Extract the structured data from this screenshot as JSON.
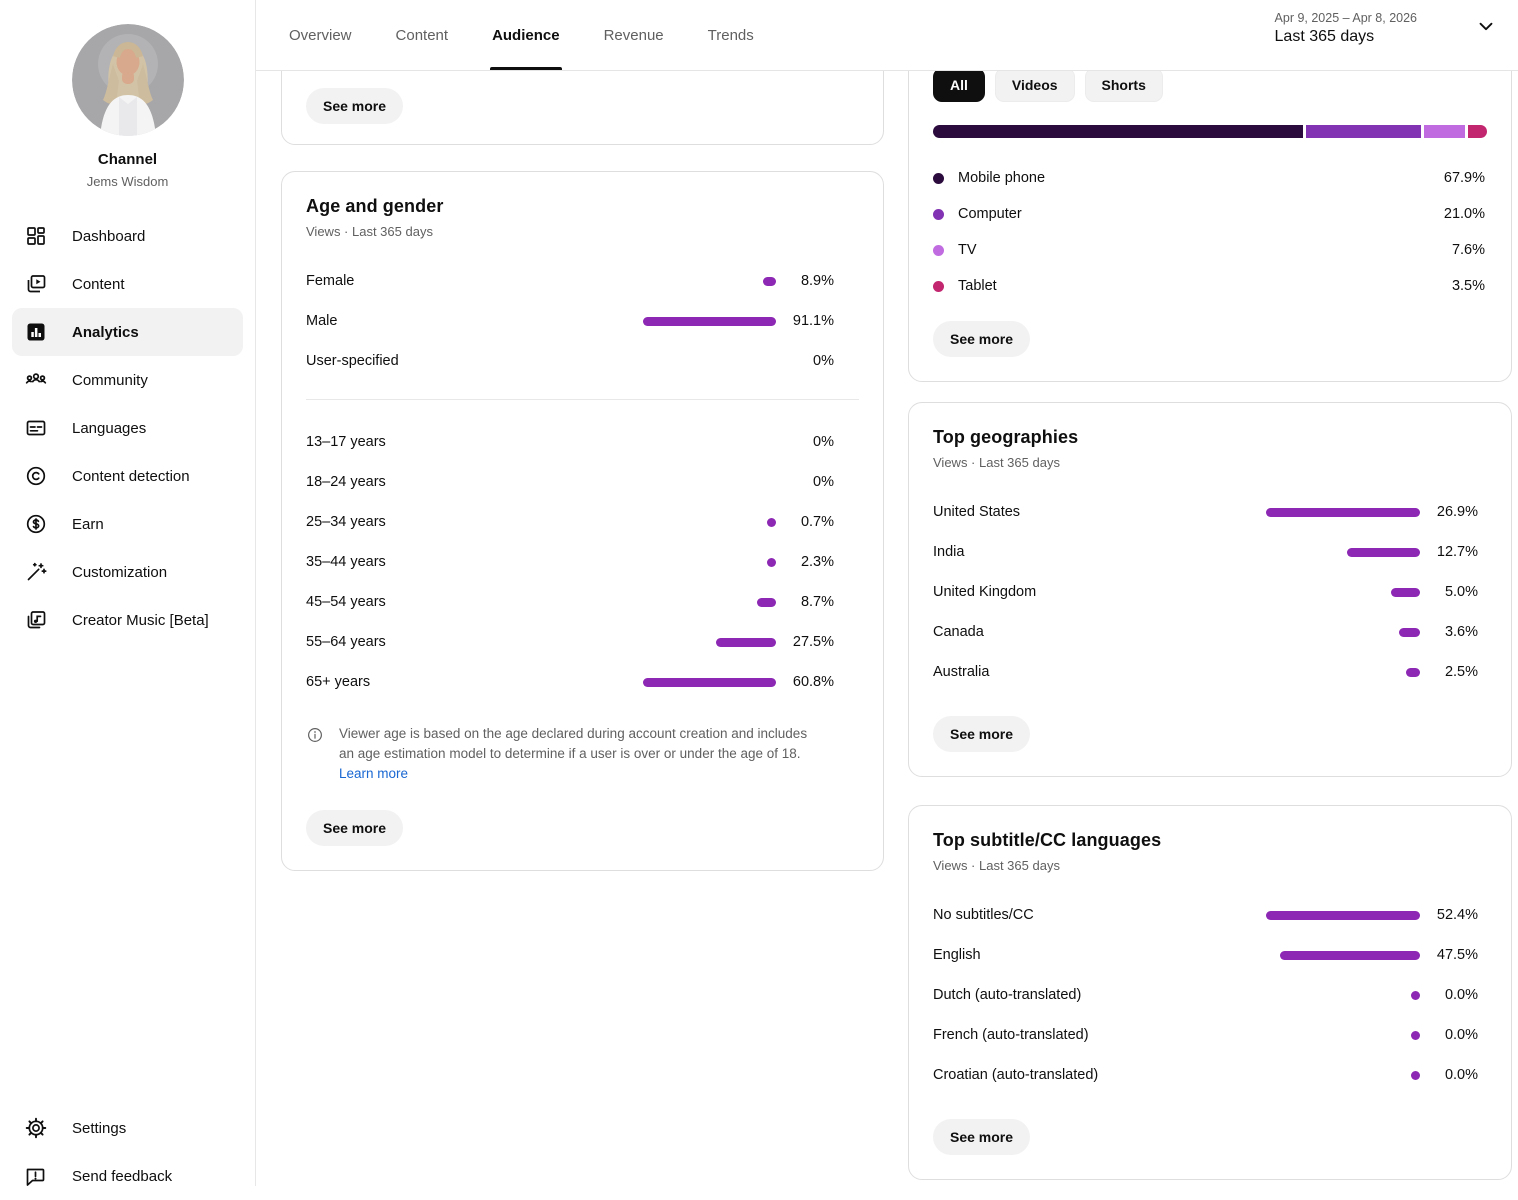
{
  "sidebar": {
    "channel_label": "Channel",
    "channel_name": "Jems Wisdom",
    "items": [
      {
        "label": "Dashboard",
        "icon": "dashboard-icon",
        "active": false
      },
      {
        "label": "Content",
        "icon": "content-icon",
        "active": false
      },
      {
        "label": "Analytics",
        "icon": "analytics-icon",
        "active": true
      },
      {
        "label": "Community",
        "icon": "community-icon",
        "active": false
      },
      {
        "label": "Languages",
        "icon": "languages-icon",
        "active": false
      },
      {
        "label": "Content detection",
        "icon": "copyright-icon",
        "active": false
      },
      {
        "label": "Earn",
        "icon": "dollar-icon",
        "active": false
      },
      {
        "label": "Customization",
        "icon": "wand-icon",
        "active": false
      },
      {
        "label": "Creator Music [Beta]",
        "icon": "music-icon",
        "active": false
      }
    ],
    "footer_items": [
      {
        "label": "Settings",
        "icon": "settings-icon",
        "active": false
      },
      {
        "label": "Send feedback",
        "icon": "feedback-icon",
        "active": false
      }
    ]
  },
  "header": {
    "tabs": [
      {
        "label": "Overview",
        "active": false
      },
      {
        "label": "Content",
        "active": false
      },
      {
        "label": "Audience",
        "active": true
      },
      {
        "label": "Revenue",
        "active": false
      },
      {
        "label": "Trends",
        "active": false
      }
    ],
    "date_range": "Apr 9, 2025 – Apr 8, 2026",
    "date_preset": "Last 365 days"
  },
  "colors": {
    "bar_purple": "#8c28b4",
    "mobile_segment": "#2b0b3d",
    "computer_segment": "#8233b3",
    "tv_segment": "#c06ce0",
    "tablet_segment": "#c2266f",
    "link_blue": "#1967d2"
  },
  "top_card": {
    "see_more": "See more"
  },
  "age_gender": {
    "title": "Age and gender",
    "subtitle": "Views · Last 365 days",
    "gender_rows": [
      {
        "label": "Female",
        "display": "8.9%",
        "value": 8.9
      },
      {
        "label": "Male",
        "display": "91.1%",
        "value": 91.1
      },
      {
        "label": "User-specified",
        "display": "0%",
        "value": 0
      }
    ],
    "age_rows": [
      {
        "label": "13–17 years",
        "display": "0%",
        "value": 0
      },
      {
        "label": "18–24 years",
        "display": "0%",
        "value": 0
      },
      {
        "label": "25–34 years",
        "display": "0.7%",
        "value": 0.7
      },
      {
        "label": "35–44 years",
        "display": "2.3%",
        "value": 2.3
      },
      {
        "label": "45–54 years",
        "display": "8.7%",
        "value": 8.7
      },
      {
        "label": "55–64 years",
        "display": "27.5%",
        "value": 27.5
      },
      {
        "label": "65+ years",
        "display": "60.8%",
        "value": 60.8
      }
    ],
    "note_text": "Viewer age is based on the age declared during account creation and includes an age estimation model to determine if a user is over or under the age of 18.",
    "note_link": "Learn more",
    "see_more": "See more"
  },
  "devices": {
    "filters": [
      {
        "label": "All",
        "active": true
      },
      {
        "label": "Videos",
        "active": false
      },
      {
        "label": "Shorts",
        "active": false
      }
    ],
    "rows": [
      {
        "label": "Mobile phone",
        "display": "67.9%",
        "value": 67.9,
        "color": "#2b0b3d"
      },
      {
        "label": "Computer",
        "display": "21.0%",
        "value": 21.0,
        "color": "#8233b3"
      },
      {
        "label": "TV",
        "display": "7.6%",
        "value": 7.6,
        "color": "#c06ce0"
      },
      {
        "label": "Tablet",
        "display": "3.5%",
        "value": 3.5,
        "color": "#c2266f"
      }
    ],
    "see_more": "See more"
  },
  "geographies": {
    "title": "Top geographies",
    "subtitle": "Views · Last 365 days",
    "rows": [
      {
        "label": "United States",
        "display": "26.9%",
        "value": 26.9
      },
      {
        "label": "India",
        "display": "12.7%",
        "value": 12.7
      },
      {
        "label": "United Kingdom",
        "display": "5.0%",
        "value": 5.0
      },
      {
        "label": "Canada",
        "display": "3.6%",
        "value": 3.6
      },
      {
        "label": "Australia",
        "display": "2.5%",
        "value": 2.5
      }
    ],
    "see_more": "See more"
  },
  "subtitles": {
    "title": "Top subtitle/CC languages",
    "subtitle": "Views · Last 365 days",
    "rows": [
      {
        "label": "No subtitles/CC",
        "display": "52.4%",
        "value": 52.4
      },
      {
        "label": "English",
        "display": "47.5%",
        "value": 47.5
      },
      {
        "label": "Dutch (auto-translated)",
        "display": "0.0%",
        "value": 0,
        "zero_dot": true
      },
      {
        "label": "French (auto-translated)",
        "display": "0.0%",
        "value": 0,
        "zero_dot": true
      },
      {
        "label": "Croatian (auto-translated)",
        "display": "0.0%",
        "value": 0,
        "zero_dot": true
      }
    ],
    "see_more": "See more"
  }
}
